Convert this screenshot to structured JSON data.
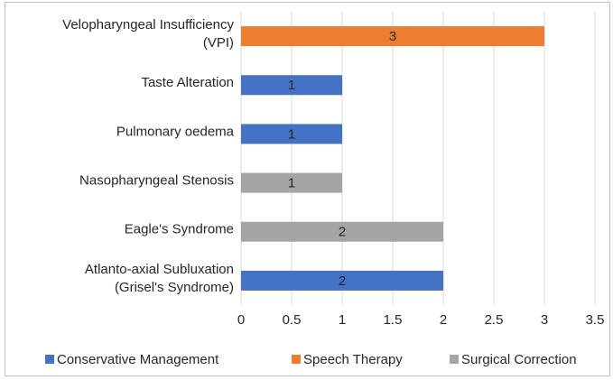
{
  "chart_data": {
    "type": "bar",
    "orientation": "horizontal",
    "categories": [
      [
        "Velopharyngeal Insufficiency",
        "(VPI)"
      ],
      [
        "Taste Alteration"
      ],
      [
        "Pulmonary oedema"
      ],
      [
        "Nasopharyngeal Stenosis"
      ],
      [
        "Eagle's Syndrome"
      ],
      [
        "Atlanto-axial Subluxation",
        "(Grisel's Syndrome)"
      ]
    ],
    "series": [
      {
        "name": "Conservative Management",
        "color": "#4472c4",
        "values": [
          null,
          1,
          1,
          null,
          null,
          2
        ]
      },
      {
        "name": "Speech Therapy",
        "color": "#ed7d31",
        "values": [
          3,
          null,
          null,
          null,
          null,
          null
        ]
      },
      {
        "name": "Surgical Correction",
        "color": "#a5a5a5",
        "values": [
          null,
          null,
          null,
          1,
          2,
          null
        ]
      }
    ],
    "xlim": [
      0,
      3.5
    ],
    "xticks": [
      0,
      0.5,
      1,
      1.5,
      2,
      2.5,
      3,
      3.5
    ],
    "grid": true,
    "legend": "bottom"
  }
}
